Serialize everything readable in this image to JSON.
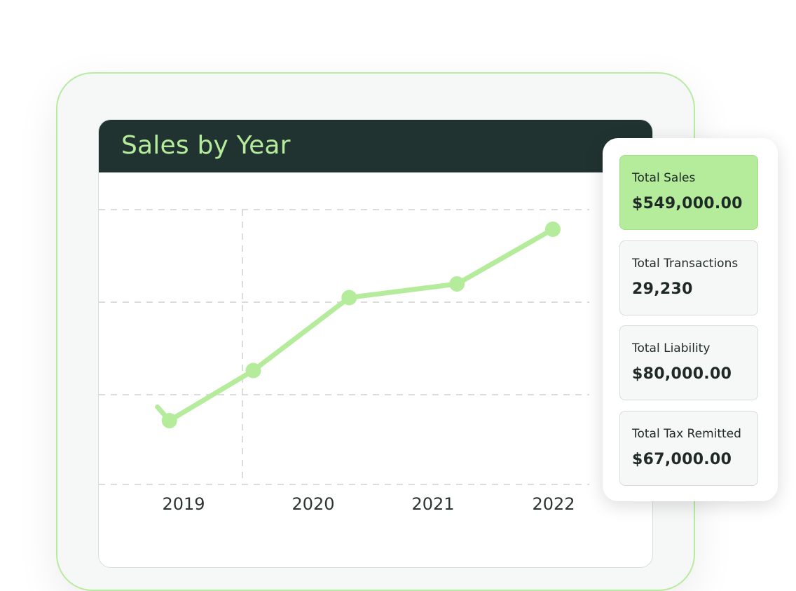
{
  "chart": {
    "title": "Sales by Year"
  },
  "chart_data": {
    "type": "line",
    "title": "Sales by Year",
    "x_tick_labels": [
      "2019",
      "2020",
      "2021",
      "2022"
    ],
    "series": [
      {
        "color": "#b4ec9b",
        "points": [
          {
            "x": 2018.7,
            "y": 0.85
          },
          {
            "x": 2018.8,
            "y": 0.7
          },
          {
            "x": 2019.5,
            "y": 1.25
          },
          {
            "x": 2020.3,
            "y": 2.05
          },
          {
            "x": 2021.2,
            "y": 2.2
          },
          {
            "x": 2022.0,
            "y": 2.8
          }
        ]
      }
    ],
    "gridlines": "dashed",
    "colors": {
      "line": "#b4ec9b",
      "grid": "#cfd2d1"
    }
  },
  "stats": [
    {
      "label": "Total Sales",
      "value": "$549,000.00",
      "active": true
    },
    {
      "label": "Total Transactions",
      "value": "29,230",
      "active": false
    },
    {
      "label": "Total Liability",
      "value": "$80,000.00",
      "active": false
    },
    {
      "label": "Total Tax Remitted",
      "value": "$67,000.00",
      "active": false
    }
  ],
  "colors": {
    "accent": "#b4ec9b",
    "header_bg": "#213330",
    "text": "#1f2a27"
  }
}
